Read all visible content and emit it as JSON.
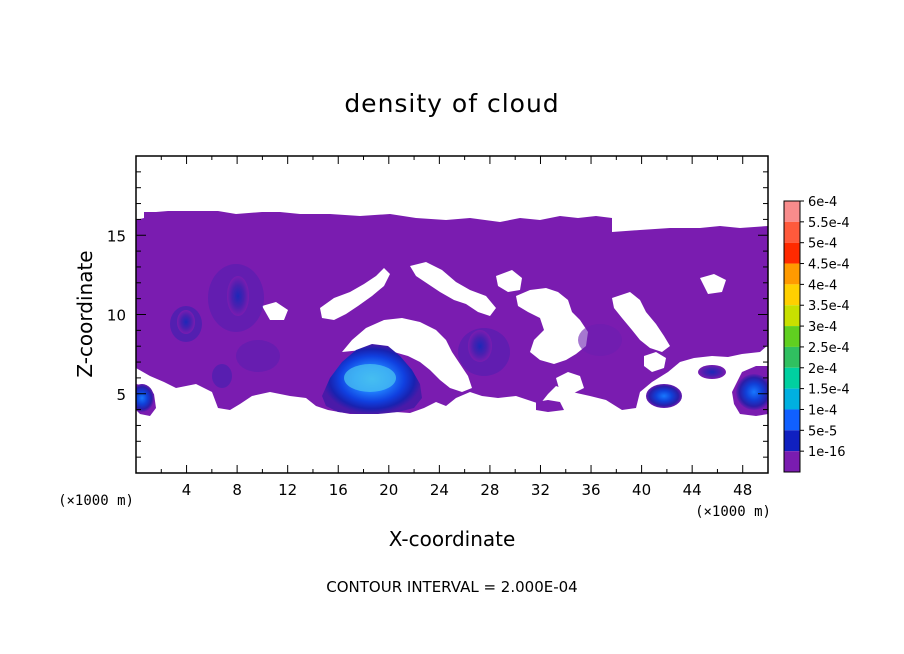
{
  "chart_data": {
    "type": "contour",
    "title": "density of cloud",
    "xlabel": "X-coordinate",
    "ylabel": "Z-coordinate",
    "x_unit_label": "(×1000 m)",
    "xlim": [
      0,
      50
    ],
    "ylim": [
      0,
      20
    ],
    "x_ticks": [
      4,
      8,
      12,
      16,
      20,
      24,
      28,
      32,
      36,
      40,
      44,
      48
    ],
    "y_ticks": [
      5,
      10,
      15
    ],
    "footer": "CONTOUR INTERVAL = 2.000E-04",
    "colorbar": {
      "levels": [
        "6e-4",
        "5.5e-4",
        "5e-4",
        "4.5e-4",
        "4e-4",
        "3.5e-4",
        "3e-4",
        "2.5e-4",
        "2e-4",
        "1.5e-4",
        "1e-4",
        "5e-5",
        "1e-16"
      ],
      "colors": [
        "#f88c8c",
        "#ff5a3c",
        "#ff2a00",
        "#ff9a00",
        "#ffd000",
        "#c8e000",
        "#60d020",
        "#30c060",
        "#00d0a0",
        "#00b0e0",
        "#1060ff",
        "#1020c0",
        "#7a1cb0"
      ]
    },
    "cloud_layer": {
      "z_bottom": 4,
      "z_top": 16.5,
      "fill": "#7a1cb0"
    },
    "dense_cores": [
      {
        "x": 18.5,
        "z": 5.7,
        "peak": "1.5e-4"
      },
      {
        "x": 49,
        "z": 5,
        "peak": "1e-4"
      },
      {
        "x": 1,
        "z": 4.7,
        "peak": "1e-4"
      },
      {
        "x": 4,
        "z": 9.5,
        "peak": "5e-5"
      },
      {
        "x": 8,
        "z": 11,
        "peak": "5e-5"
      },
      {
        "x": 27,
        "z": 8,
        "peak": "5e-5"
      },
      {
        "x": 42,
        "z": 5,
        "peak": "5e-5"
      },
      {
        "x": 46,
        "z": 6.5,
        "peak": "5e-5"
      }
    ]
  }
}
